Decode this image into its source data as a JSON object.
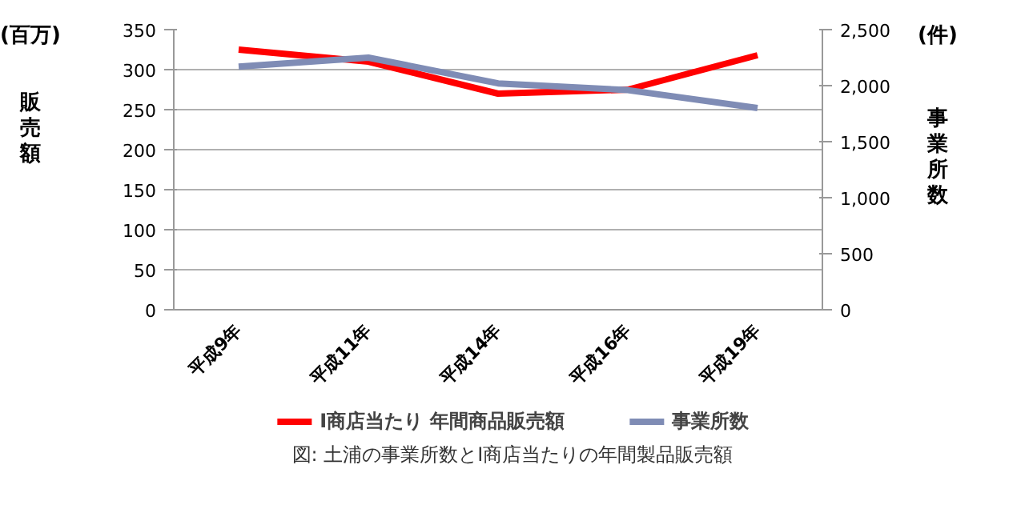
{
  "chart_data": {
    "type": "line",
    "categories": [
      "平成9年",
      "平成11年",
      "平成14年",
      "平成16年",
      "平成19年"
    ],
    "series": [
      {
        "name": "I商店当たり 年間商品販売額",
        "color": "#ff0000",
        "values": [
          325,
          310,
          270,
          275,
          318
        ]
      },
      {
        "name": "事業所数",
        "color": "#7f8cb5",
        "values": [
          2170,
          2250,
          2020,
          1960,
          1800
        ],
        "axis": "y2"
      }
    ],
    "ylabel": "販売額",
    "y2label": "事業所数",
    "ylim": [
      0,
      350
    ],
    "yticks": [
      0,
      50,
      100,
      150,
      200,
      250,
      300,
      350
    ],
    "y2lim": [
      0,
      2500
    ],
    "y2ticks": [
      0,
      {
        "value": 500,
        "label": "500"
      },
      {
        "value": 1000,
        "label": "1,000"
      },
      {
        "value": 1500,
        "label": "1,500"
      },
      {
        "value": 2000,
        "label": "2,000"
      },
      {
        "value": 2500,
        "label": "2,500"
      }
    ],
    "grid": "y",
    "legend": "bottom",
    "marker": "none",
    "line_style": "solid",
    "annotations": [
      "(百万)",
      "(件)",
      "図: 土浦の事業所数とI商店当たりの年間製品販売額"
    ]
  }
}
